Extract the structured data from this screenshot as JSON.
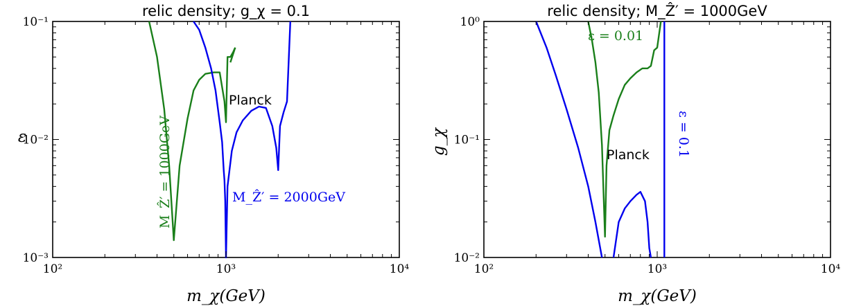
{
  "chart_data": [
    {
      "type": "line",
      "title": "relic density; g_χ = 0.1",
      "xlabel": "m_χ(GeV)",
      "ylabel": "ε",
      "xscale": "log",
      "yscale": "log",
      "xlim": [
        100,
        10000
      ],
      "ylim": [
        0.001,
        0.1
      ],
      "xticks": [
        100,
        1000,
        10000
      ],
      "xticklabels": [
        "10²",
        "10³",
        "10⁴"
      ],
      "yticks": [
        0.001,
        0.01,
        0.1
      ],
      "yticklabels": [
        "10⁻³",
        "10⁻²",
        "10⁻¹"
      ],
      "grid": false,
      "series": [
        {
          "name": "M_Ẑ′ = 1000GeV",
          "color": "#1a7f1a",
          "x": [
            360,
            400,
            440,
            470,
            500,
            540,
            600,
            650,
            700,
            760,
            850,
            920,
            980,
            1000,
            1020,
            1060,
            1100,
            1130
          ],
          "y": [
            0.1,
            0.05,
            0.018,
            0.006,
            0.0014,
            0.006,
            0.015,
            0.026,
            0.032,
            0.036,
            0.037,
            0.037,
            0.021,
            0.014,
            0.05,
            0.05,
            0.055,
            0.06
          ]
        },
        {
          "name": "M_Ẑ′ = 1000GeV",
          "color": "#1a7f1a",
          "x": [
            1060,
            1130
          ],
          "y": [
            0.045,
            0.06
          ]
        },
        {
          "name": "M_Ẑ′ = 2000GeV",
          "color": "#0000ee",
          "x": [
            650,
            700,
            760,
            820,
            870,
            920,
            950,
            970,
            980,
            990,
            1000,
            1020,
            1080,
            1150,
            1250,
            1400,
            1550,
            1700,
            1850,
            1950,
            2000,
            2050,
            2150,
            2250,
            2350
          ],
          "y": [
            0.1,
            0.085,
            0.06,
            0.04,
            0.026,
            0.014,
            0.0095,
            0.0055,
            0.0045,
            0.003,
            0.001,
            0.004,
            0.008,
            0.0115,
            0.0145,
            0.0175,
            0.019,
            0.0185,
            0.013,
            0.0085,
            0.0055,
            0.013,
            0.017,
            0.021,
            0.1
          ]
        }
      ],
      "annotations": [
        {
          "text": "Planck"
        },
        {
          "text": "M_Ẑ′ = 1000GeV",
          "color": "#1a7f1a"
        },
        {
          "text": "M_Ẑ′ = 2000GeV",
          "color": "#0000ee"
        }
      ]
    },
    {
      "type": "line",
      "title": "relic density; M_Ẑ′ = 1000GeV",
      "xlabel": "m_χ(GeV)",
      "ylabel": "g_χ",
      "xscale": "log",
      "yscale": "log",
      "xlim": [
        100,
        10000
      ],
      "ylim": [
        0.01,
        1
      ],
      "xticks": [
        100,
        1000,
        10000
      ],
      "xticklabels": [
        "10²",
        "10³",
        "10⁴"
      ],
      "yticks": [
        0.01,
        0.1,
        1
      ],
      "yticklabels": [
        "10⁻²",
        "10⁻¹",
        "10⁰"
      ],
      "grid": false,
      "series": [
        {
          "name": "ε = 0.01",
          "color": "#1a7f1a",
          "x": [
            400,
            420,
            440,
            460,
            480,
            500,
            510,
            530,
            560,
            600,
            650,
            700,
            760,
            820,
            880,
            920,
            960,
            1000,
            1050
          ],
          "y": [
            1.0,
            0.7,
            0.45,
            0.25,
            0.09,
            0.015,
            0.06,
            0.12,
            0.16,
            0.22,
            0.29,
            0.33,
            0.37,
            0.4,
            0.4,
            0.42,
            0.57,
            0.6,
            1.0
          ]
        },
        {
          "name": "",
          "color": "#0000ee",
          "x": [
            200,
            230,
            260,
            300,
            350,
            400,
            440,
            480
          ],
          "y": [
            1.0,
            0.6,
            0.35,
            0.18,
            0.085,
            0.04,
            0.02,
            0.01
          ]
        },
        {
          "name": "",
          "color": "#0000ee",
          "x": [
            560,
            600,
            650,
            700,
            760,
            800,
            850,
            880,
            900,
            920
          ],
          "y": [
            0.01,
            0.02,
            0.026,
            0.03,
            0.034,
            0.036,
            0.03,
            0.02,
            0.012,
            0.01
          ]
        },
        {
          "name": "ε = 0.1",
          "color": "#0000ee",
          "x": [
            1100,
            1100
          ],
          "y": [
            0.01,
            1.0
          ]
        }
      ],
      "annotations": [
        {
          "text": "Planck"
        },
        {
          "text": "ε = 0.01",
          "color": "#1a7f1a"
        },
        {
          "text": "ε = 0.1",
          "color": "#0000ee"
        }
      ]
    }
  ]
}
